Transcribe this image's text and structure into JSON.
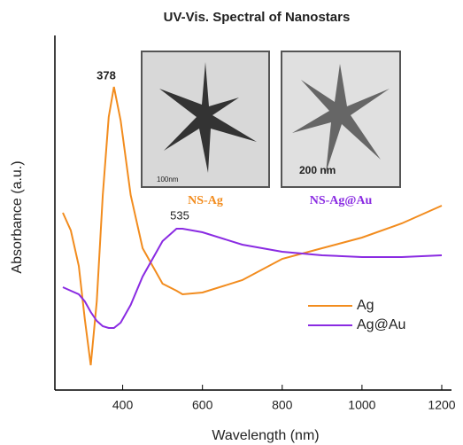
{
  "chart_data": {
    "type": "line",
    "title": "UV-Vis. Spectral of Nanostars",
    "x_label": "Wavelength (nm)",
    "y_label": "Absorbance (a.u.)",
    "x": [
      250,
      270,
      290,
      305,
      320,
      335,
      350,
      365,
      378,
      395,
      420,
      450,
      500,
      535,
      550,
      600,
      700,
      800,
      900,
      1000,
      1100,
      1200
    ],
    "series": [
      {
        "name": "Ag",
        "color": "#f28c1e",
        "values": [
          0.5,
          0.45,
          0.35,
          0.2,
          0.07,
          0.25,
          0.55,
          0.77,
          0.855,
          0.76,
          0.55,
          0.4,
          0.3,
          0.28,
          0.27,
          0.275,
          0.31,
          0.37,
          0.4,
          0.43,
          0.47,
          0.52
        ]
      },
      {
        "name": "Ag@Au",
        "color": "#8a2be2",
        "values": [
          0.29,
          0.28,
          0.27,
          0.25,
          0.22,
          0.195,
          0.18,
          0.175,
          0.175,
          0.19,
          0.24,
          0.32,
          0.42,
          0.455,
          0.455,
          0.445,
          0.41,
          0.39,
          0.38,
          0.375,
          0.375,
          0.38
        ]
      }
    ],
    "annotations": [
      "378",
      "535"
    ],
    "inset_labels": [
      "NS-Ag",
      "NS-Ag@Au"
    ],
    "inset_scale_labels": [
      "100nm",
      "200 nm"
    ],
    "xlim": [
      230,
      1220
    ],
    "xticks": [
      400,
      600,
      800,
      1000,
      1200
    ],
    "ylim": [
      0,
      1
    ],
    "legend": "lower right"
  }
}
